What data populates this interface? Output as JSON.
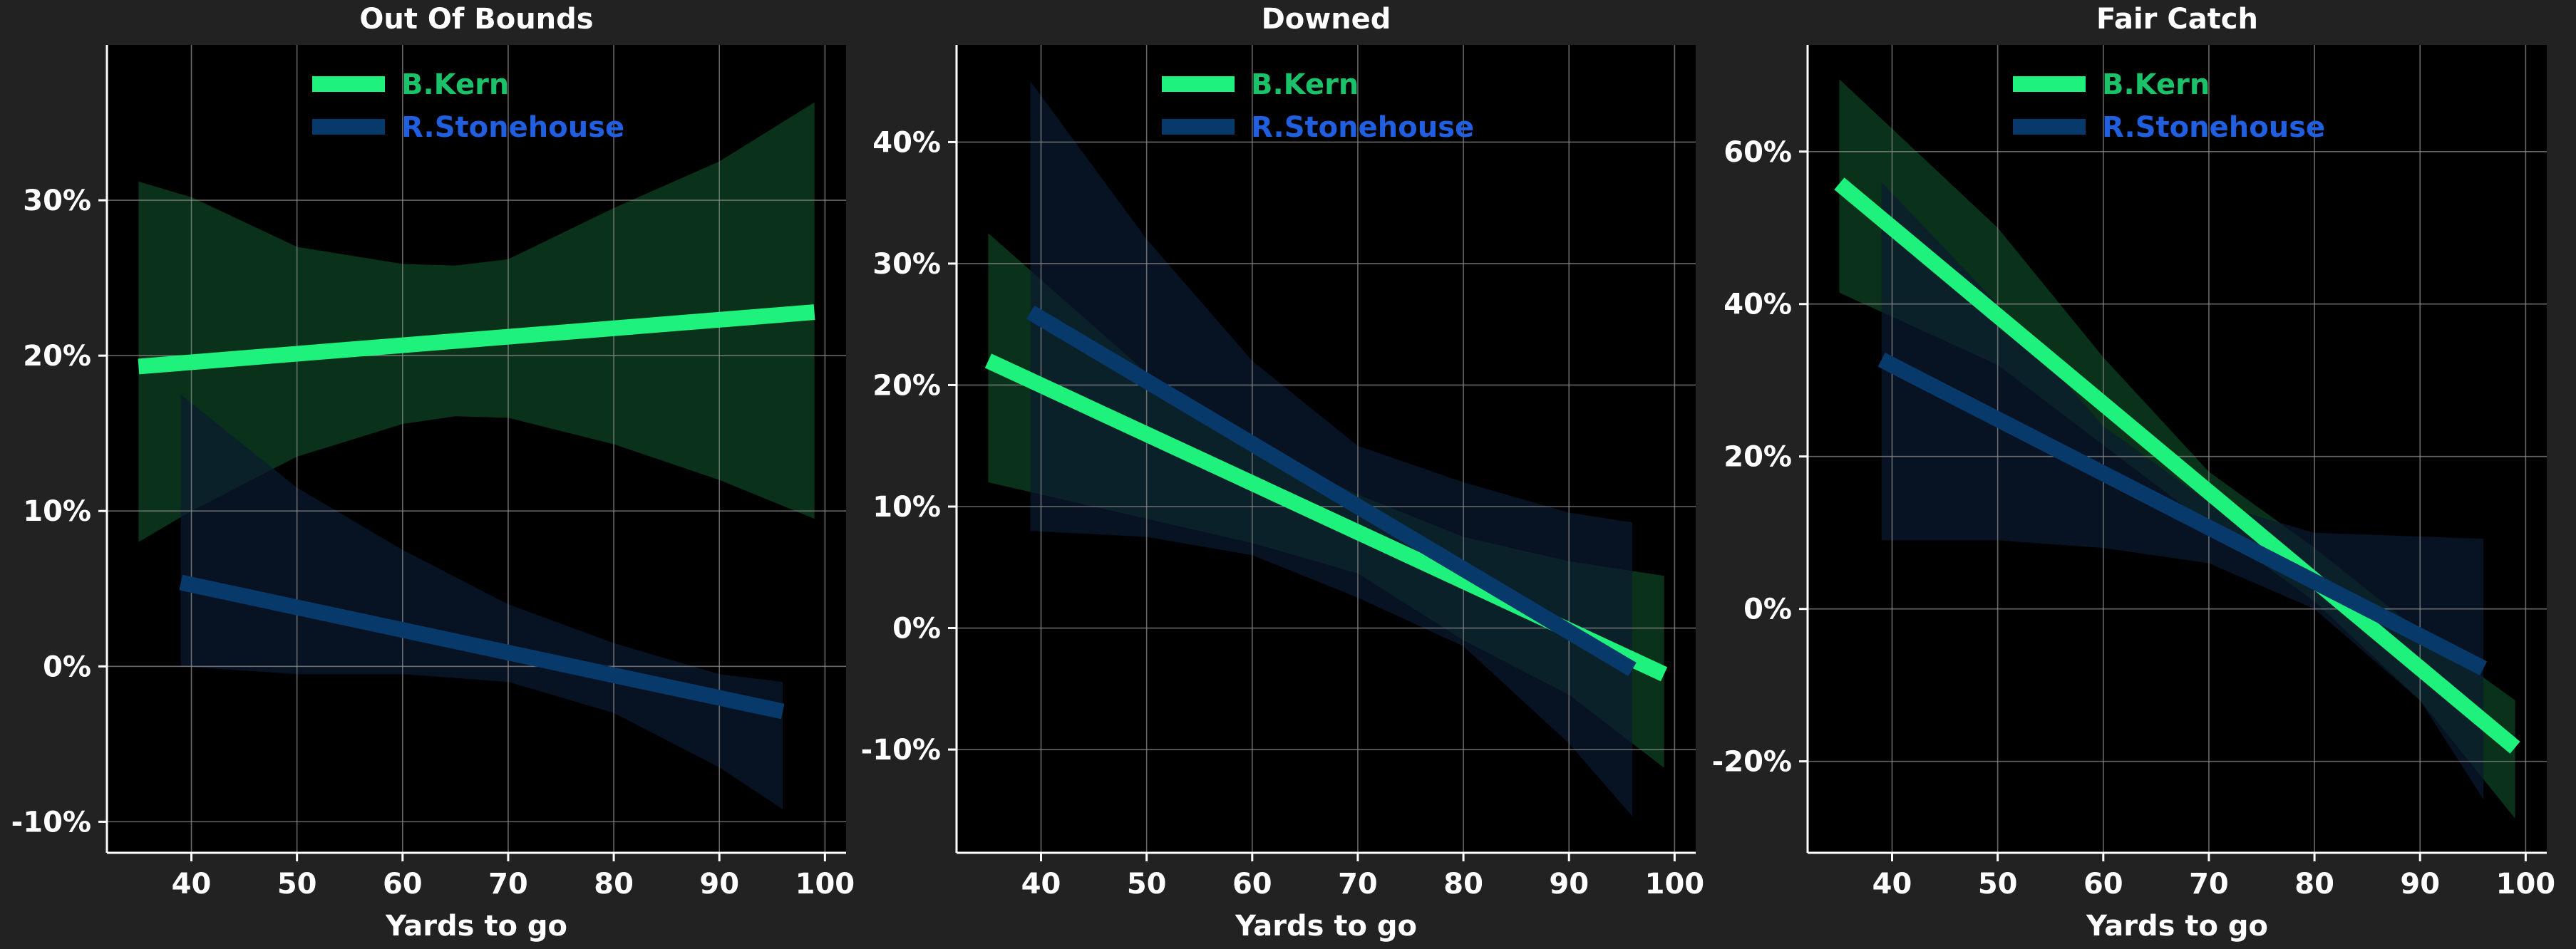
{
  "chart_data": [
    {
      "type": "line",
      "title": "Out Of Bounds",
      "xlabel": "Yards to go",
      "ylabel": "",
      "xlim": [
        32,
        102
      ],
      "ylim": [
        -12,
        40
      ],
      "xticks": [
        40,
        50,
        60,
        70,
        80,
        90,
        100
      ],
      "yticks": [
        -10,
        0,
        10,
        20,
        30
      ],
      "ytick_labels": [
        "-10%",
        "0%",
        "10%",
        "20%",
        "30%"
      ],
      "grid": true,
      "legend_position": "top-center",
      "series": [
        {
          "name": "B.Kern",
          "color": "#1ef27c",
          "x": [
            35,
            99
          ],
          "y": [
            19.3,
            22.8
          ],
          "band_x": [
            35,
            40,
            50,
            60,
            65,
            70,
            80,
            90,
            99
          ],
          "band_upper": [
            31.2,
            30.2,
            27.0,
            25.9,
            25.8,
            26.2,
            29.5,
            32.5,
            36.3
          ],
          "band_lower": [
            8.0,
            10.0,
            13.5,
            15.6,
            16.1,
            16.0,
            14.3,
            12.0,
            9.5
          ]
        },
        {
          "name": "R.Stonehouse",
          "color": "#073a6b",
          "x": [
            39,
            96
          ],
          "y": [
            5.4,
            -2.9
          ],
          "band_x": [
            39,
            50,
            60,
            70,
            80,
            90,
            96
          ],
          "band_upper": [
            17.5,
            11.5,
            7.5,
            4.0,
            1.5,
            -0.5,
            -1.0
          ],
          "band_lower": [
            0.0,
            -0.5,
            -0.5,
            -1.0,
            -3.0,
            -6.5,
            -9.2
          ]
        }
      ]
    },
    {
      "type": "line",
      "title": "Downed",
      "xlabel": "Yards to go",
      "ylabel": "",
      "xlim": [
        32,
        102
      ],
      "ylim": [
        -18.5,
        48
      ],
      "xticks": [
        40,
        50,
        60,
        70,
        80,
        90,
        100
      ],
      "yticks": [
        -10,
        0,
        10,
        20,
        30,
        40
      ],
      "ytick_labels": [
        "-10%",
        "0%",
        "10%",
        "20%",
        "30%",
        "40%"
      ],
      "grid": true,
      "legend_position": "top-center",
      "series": [
        {
          "name": "B.Kern",
          "color": "#1ef27c",
          "x": [
            35,
            99
          ],
          "y": [
            22.0,
            -3.8
          ],
          "band_x": [
            35,
            50,
            60,
            70,
            80,
            90,
            99
          ],
          "band_upper": [
            32.5,
            21.0,
            15.0,
            11.0,
            7.5,
            5.5,
            4.3
          ],
          "band_lower": [
            12.0,
            9.0,
            7.0,
            4.5,
            -1.0,
            -5.5,
            -11.5
          ]
        },
        {
          "name": "R.Stonehouse",
          "color": "#073a6b",
          "x": [
            39,
            96
          ],
          "y": [
            26.0,
            -3.4
          ],
          "band_x": [
            39,
            50,
            60,
            70,
            80,
            90,
            96
          ],
          "band_upper": [
            45.0,
            32.0,
            22.0,
            15.0,
            12.0,
            9.5,
            8.7
          ],
          "band_lower": [
            8.0,
            7.5,
            6.0,
            2.5,
            -1.5,
            -9.5,
            -15.5
          ]
        }
      ]
    },
    {
      "type": "line",
      "title": "Fair Catch",
      "xlabel": "Yards to go",
      "ylabel": "",
      "xlim": [
        32,
        102
      ],
      "ylim": [
        -32,
        74
      ],
      "xticks": [
        40,
        50,
        60,
        70,
        80,
        90,
        100
      ],
      "yticks": [
        -20,
        0,
        20,
        40,
        60
      ],
      "ytick_labels": [
        "-20%",
        "0%",
        "20%",
        "40%",
        "60%"
      ],
      "grid": true,
      "legend_position": "top-center",
      "series": [
        {
          "name": "B.Kern",
          "color": "#1ef27c",
          "x": [
            35,
            99
          ],
          "y": [
            55.8,
            -18.2
          ],
          "band_x": [
            35,
            50,
            60,
            70,
            80,
            90,
            99
          ],
          "band_upper": [
            69.5,
            50.0,
            33.0,
            18.0,
            8.0,
            -3.0,
            -12.0
          ],
          "band_lower": [
            41.5,
            32.0,
            21.5,
            11.0,
            1.0,
            -12.0,
            -27.5
          ]
        },
        {
          "name": "R.Stonehouse",
          "color": "#073a6b",
          "x": [
            39,
            96
          ],
          "y": [
            32.7,
            -7.8
          ],
          "band_x": [
            39,
            50,
            60,
            70,
            80,
            90,
            96
          ],
          "band_upper": [
            56.0,
            40.0,
            24.0,
            14.0,
            10.0,
            9.5,
            9.2
          ],
          "band_lower": [
            9.0,
            9.0,
            8.0,
            6.0,
            0.0,
            -12.0,
            -25.0
          ]
        }
      ]
    }
  ]
}
